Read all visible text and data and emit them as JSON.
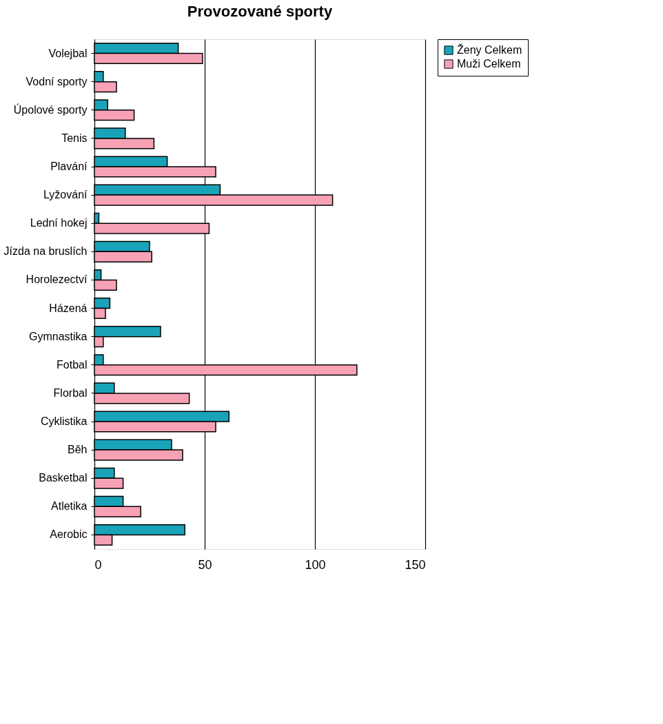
{
  "chart_data": {
    "type": "bar",
    "orientation": "horizontal",
    "title": "Provozované sporty",
    "categories": [
      "Volejbal",
      "Vodní sporty",
      "Úpolové sporty",
      "Tenis",
      "Plavání",
      "Lyžování",
      "Lední hokej",
      "Jízda na bruslích",
      "Horolezectví",
      "Házená",
      "Gymnastika",
      "Fotbal",
      "Florbal",
      "Cyklistika",
      "Běh",
      "Basketbal",
      "Atletika",
      "Aerobic"
    ],
    "series": [
      {
        "name": "Ženy Celkem",
        "color": "#1aa3b8",
        "values": [
          38,
          4,
          6,
          14,
          33,
          57,
          2,
          25,
          3,
          7,
          30,
          4,
          9,
          61,
          35,
          9,
          13,
          41
        ]
      },
      {
        "name": "Muži Celkem",
        "color": "#f7a1b5",
        "values": [
          49,
          10,
          18,
          27,
          55,
          108,
          52,
          26,
          10,
          5,
          4,
          119,
          43,
          55,
          40,
          13,
          21,
          8
        ]
      }
    ],
    "xlim": [
      0,
      150
    ],
    "xticks": [
      0,
      50,
      100,
      150
    ],
    "grid": "x",
    "legend": "right"
  }
}
